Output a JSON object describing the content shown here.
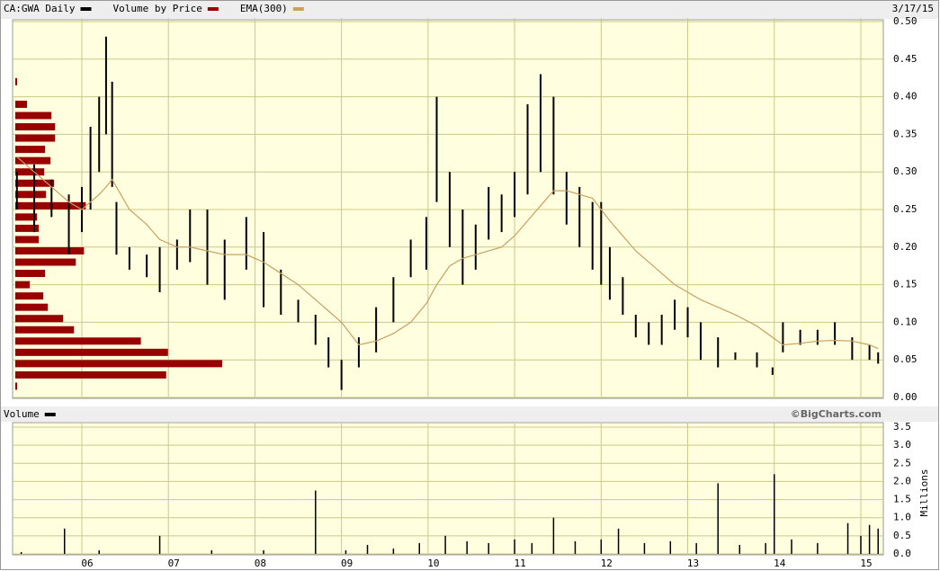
{
  "chart_data": [
    {
      "type": "stock",
      "date": "3/17/15",
      "x": [
        2005.25,
        2005.45,
        2005.65,
        2005.85,
        2006.0,
        2006.1,
        2006.2,
        2006.28,
        2006.35,
        2006.4,
        2006.55,
        2006.75,
        2006.9,
        2007.1,
        2007.25,
        2007.45,
        2007.65,
        2007.9,
        2008.1,
        2008.3,
        2008.5,
        2008.7,
        2008.85,
        2009.0,
        2009.2,
        2009.4,
        2009.6,
        2009.8,
        2009.98,
        2010.1,
        2010.25,
        2010.4,
        2010.55,
        2010.7,
        2010.85,
        2011.0,
        2011.15,
        2011.3,
        2011.45,
        2011.6,
        2011.75,
        2011.9,
        2012.0,
        2012.1,
        2012.25,
        2012.4,
        2012.55,
        2012.7,
        2012.85,
        2013.0,
        2013.15,
        2013.35,
        2013.55,
        2013.8,
        2013.98,
        2014.1,
        2014.3,
        2014.5,
        2014.7,
        2014.9,
        2015.1,
        2015.2
      ],
      "series": [
        {
          "name": "CA:GWA Daily",
          "color": "#000000",
          "high": [
            0.3,
            0.31,
            0.29,
            0.27,
            0.28,
            0.36,
            0.4,
            0.48,
            0.42,
            0.26,
            0.2,
            0.19,
            0.2,
            0.21,
            0.25,
            0.25,
            0.21,
            0.24,
            0.22,
            0.17,
            0.13,
            0.11,
            0.08,
            0.05,
            0.08,
            0.12,
            0.16,
            0.21,
            0.24,
            0.4,
            0.3,
            0.25,
            0.23,
            0.28,
            0.27,
            0.3,
            0.39,
            0.43,
            0.4,
            0.3,
            0.28,
            0.26,
            0.26,
            0.2,
            0.16,
            0.11,
            0.1,
            0.11,
            0.13,
            0.12,
            0.1,
            0.08,
            0.06,
            0.06,
            0.04,
            0.1,
            0.09,
            0.09,
            0.1,
            0.08,
            0.07,
            0.06
          ],
          "low": [
            0.25,
            0.22,
            0.24,
            0.19,
            0.22,
            0.25,
            0.3,
            0.35,
            0.28,
            0.19,
            0.17,
            0.16,
            0.14,
            0.17,
            0.18,
            0.15,
            0.13,
            0.17,
            0.12,
            0.11,
            0.1,
            0.07,
            0.04,
            0.01,
            0.04,
            0.06,
            0.1,
            0.16,
            0.17,
            0.26,
            0.2,
            0.15,
            0.17,
            0.21,
            0.22,
            0.24,
            0.27,
            0.3,
            0.27,
            0.23,
            0.2,
            0.17,
            0.15,
            0.13,
            0.11,
            0.08,
            0.07,
            0.07,
            0.09,
            0.08,
            0.05,
            0.04,
            0.05,
            0.04,
            0.03,
            0.06,
            0.07,
            0.07,
            0.07,
            0.05,
            0.05,
            0.045
          ]
        },
        {
          "name": "EMA(300)",
          "color": "#c8a060",
          "values": [
            0.32,
            0.3,
            0.28,
            0.26,
            0.25,
            0.26,
            0.27,
            0.28,
            0.29,
            0.28,
            0.25,
            0.23,
            0.21,
            0.2,
            0.2,
            0.195,
            0.19,
            0.19,
            0.18,
            0.165,
            0.15,
            0.13,
            0.115,
            0.1,
            0.07,
            0.075,
            0.085,
            0.1,
            0.125,
            0.15,
            0.175,
            0.185,
            0.19,
            0.195,
            0.2,
            0.215,
            0.235,
            0.255,
            0.275,
            0.275,
            0.27,
            0.265,
            0.25,
            0.235,
            0.215,
            0.195,
            0.18,
            0.165,
            0.15,
            0.14,
            0.13,
            0.12,
            0.11,
            0.095,
            0.08,
            0.07,
            0.072,
            0.075,
            0.076,
            0.075,
            0.07,
            0.065
          ]
        }
      ],
      "volume_by_price": {
        "name": "Volume by Price",
        "color": "#990000",
        "prices": [
          0.42,
          0.39,
          0.375,
          0.36,
          0.345,
          0.33,
          0.315,
          0.3,
          0.285,
          0.27,
          0.255,
          0.24,
          0.225,
          0.21,
          0.195,
          0.18,
          0.165,
          0.15,
          0.135,
          0.12,
          0.105,
          0.09,
          0.075,
          0.06,
          0.045,
          0.03,
          0.015
        ],
        "values": [
          2,
          13,
          40,
          44,
          44,
          33,
          39,
          32,
          43,
          34,
          78,
          24,
          26,
          26,
          76,
          67,
          33,
          16,
          31,
          36,
          53,
          65,
          139,
          169,
          229,
          167,
          2
        ]
      },
      "xlim": [
        2005.2,
        2015.26
      ],
      "xticks": [
        2006,
        2007,
        2008,
        2009,
        2010,
        2011,
        2012,
        2013,
        2014,
        2015
      ],
      "ylim": [
        0,
        0.5
      ],
      "yticks": [
        {
          "value": 0,
          "label": "0.00"
        },
        {
          "value": 0.05,
          "label": "0.05"
        },
        {
          "value": 0.1,
          "label": "0.10"
        },
        {
          "value": 0.15,
          "label": "0.15"
        },
        {
          "value": 0.2,
          "label": "0.20"
        },
        {
          "value": 0.25,
          "label": "0.25"
        },
        {
          "value": 0.3,
          "label": "0.30"
        },
        {
          "value": 0.35,
          "label": "0.35"
        },
        {
          "value": 0.4,
          "label": "0.40"
        },
        {
          "value": 0.45,
          "label": "0.45"
        },
        {
          "value": 0.5,
          "label": "0.50"
        }
      ],
      "grid": true
    },
    {
      "type": "bar",
      "credit": "©BigCharts.com",
      "y_label": "Millions",
      "x": [
        2005.3,
        2005.8,
        2006.2,
        2006.9,
        2007.5,
        2008.1,
        2008.7,
        2009.05,
        2009.3,
        2009.6,
        2009.9,
        2010.2,
        2010.45,
        2010.7,
        2011.0,
        2011.2,
        2011.45,
        2011.7,
        2012.0,
        2012.2,
        2012.5,
        2012.8,
        2013.1,
        2013.35,
        2013.6,
        2013.9,
        2014.0,
        2014.2,
        2014.5,
        2014.85,
        2015.0,
        2015.1,
        2015.2
      ],
      "series": [
        {
          "name": "Volume",
          "color": "#000000",
          "values": [
            0.05,
            0.7,
            0.1,
            0.5,
            0.1,
            0.1,
            1.75,
            0.1,
            0.25,
            0.15,
            0.3,
            0.5,
            0.35,
            0.3,
            0.4,
            0.3,
            1.0,
            0.35,
            0.4,
            0.7,
            0.3,
            0.35,
            0.3,
            1.95,
            0.25,
            0.3,
            2.2,
            0.4,
            0.3,
            0.85,
            0.5,
            0.8,
            0.7
          ]
        }
      ],
      "xlim": [
        2005.2,
        2015.26
      ],
      "xticks": [
        {
          "value": 2006,
          "label": "06"
        },
        {
          "value": 2007,
          "label": "07"
        },
        {
          "value": 2008,
          "label": "08"
        },
        {
          "value": 2009,
          "label": "09"
        },
        {
          "value": 2010,
          "label": "10"
        },
        {
          "value": 2011,
          "label": "11"
        },
        {
          "value": 2012,
          "label": "12"
        },
        {
          "value": 2013,
          "label": "13"
        },
        {
          "value": 2014,
          "label": "14"
        },
        {
          "value": 2015,
          "label": "15"
        }
      ],
      "ylim": [
        0,
        3.5
      ],
      "yticks": [
        {
          "value": 0,
          "label": "0.0"
        },
        {
          "value": 0.5,
          "label": "0.5"
        },
        {
          "value": 1,
          "label": "1.0"
        },
        {
          "value": 1.5,
          "label": "1.5"
        },
        {
          "value": 2,
          "label": "2.0"
        },
        {
          "value": 2.5,
          "label": "2.5"
        },
        {
          "value": 3,
          "label": "3.0"
        },
        {
          "value": 3.5,
          "label": "3.5"
        }
      ],
      "grid": true
    }
  ]
}
